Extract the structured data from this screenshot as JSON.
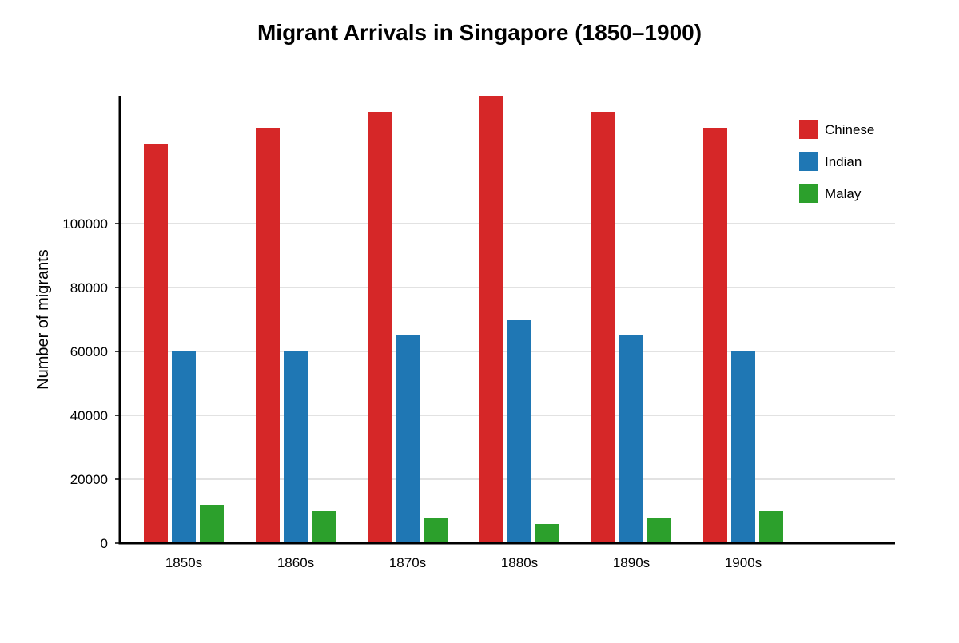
{
  "chart_data": {
    "type": "bar",
    "title": "Migrant Arrivals in Singapore (1850–1900)",
    "xlabel": "",
    "ylabel": "Number of migrants",
    "categories": [
      "1850s",
      "1860s",
      "1870s",
      "1880s",
      "1890s",
      "1900s"
    ],
    "series": [
      {
        "name": "Chinese",
        "color": "#d62728",
        "values": [
          125000,
          130000,
          135000,
          140000,
          135000,
          130000
        ]
      },
      {
        "name": "Indian",
        "color": "#1f77b4",
        "values": [
          60000,
          60000,
          65000,
          70000,
          65000,
          60000
        ]
      },
      {
        "name": "Malay",
        "color": "#2ca02c",
        "values": [
          12000,
          10000,
          8000,
          6000,
          8000,
          10000
        ]
      }
    ],
    "yticks": [
      "0",
      "20000",
      "40000",
      "60000",
      "80000",
      "100000"
    ],
    "ylim": [
      0,
      140000
    ],
    "grid": true,
    "legend_position": "top-right"
  }
}
